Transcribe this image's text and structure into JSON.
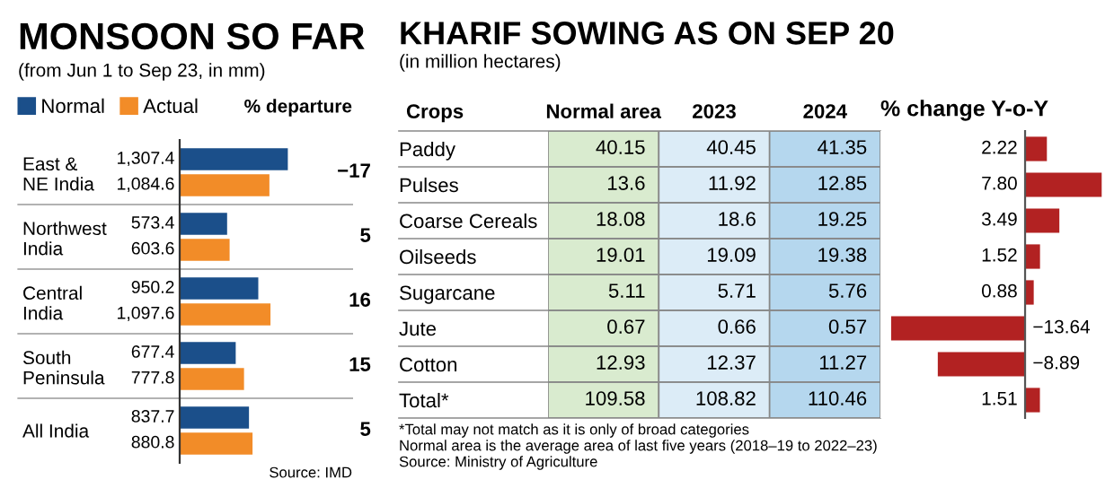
{
  "chart_data": [
    {
      "type": "bar",
      "orientation": "horizontal",
      "title": "MONSOON SO FAR",
      "subtitle": "(from Jun 1 to Sep 23, in mm)",
      "legend": "top",
      "categories": [
        "East & NE India",
        "Northwest India",
        "Central India",
        "South Peninsula",
        "All India"
      ],
      "series": [
        {
          "name": "Normal",
          "color": "#1b4f8a",
          "values": [
            1307.4,
            573.4,
            950.2,
            677.4,
            837.7
          ],
          "value_labels": [
            "1,307.4",
            "573.4",
            "950.2",
            "677.4",
            "837.7"
          ]
        },
        {
          "name": "Actual",
          "color": "#f28c28",
          "values": [
            1084.6,
            603.6,
            1097.6,
            777.8,
            880.8
          ],
          "value_labels": [
            "1,084.6",
            "603.6",
            "1,097.6",
            "777.8",
            "880.8"
          ]
        }
      ],
      "annotations": [
        "% departure",
        "−17",
        "5",
        "16",
        "15",
        "5",
        "Source: IMD"
      ]
    },
    {
      "type": "heatmap",
      "title": "KHARIF SOWING AS ON SEP 20",
      "subtitle": "(in million hectares)",
      "ylabel": "Crops",
      "categories": [
        "Normal area",
        "2023",
        "2024"
      ],
      "y_categories": [
        "Paddy",
        "Pulses",
        "Coarse Cereals",
        "Oilseeds",
        "Sugarcane",
        "Jute",
        "Cotton",
        "Total*"
      ],
      "colors": [
        "#d9ebcf",
        "#dcecf7",
        "#b5d7ee"
      ],
      "data_labels": true,
      "cells": [
        [
          40.15,
          40.45,
          41.35
        ],
        [
          13.6,
          11.92,
          12.85
        ],
        [
          18.08,
          18.6,
          19.25
        ],
        [
          19.01,
          19.09,
          19.38
        ],
        [
          5.11,
          5.71,
          5.76
        ],
        [
          0.67,
          0.66,
          0.57
        ],
        [
          12.93,
          12.37,
          11.27
        ],
        [
          109.58,
          108.82,
          110.46
        ]
      ],
      "annotations": [
        "*Total may not match as it is only of broad categories",
        "Normal area is the average area of last five years (2018–19 to 2022–23)",
        "Source: Ministry of Agriculture"
      ]
    },
    {
      "type": "bar",
      "orientation": "horizontal",
      "title": "% change Y-o-Y",
      "categories": [
        null,
        null,
        null,
        null,
        null,
        null,
        null,
        null
      ],
      "series": [
        {
          "color": "#b22222",
          "values": [
            2.22,
            7.8,
            3.49,
            1.52,
            0.88,
            -13.64,
            -8.89,
            1.51
          ],
          "value_labels": [
            "2.22",
            "7.80",
            "3.49",
            "1.52",
            "0.88",
            "−13.64",
            "−8.89",
            "1.51"
          ]
        }
      ]
    }
  ]
}
